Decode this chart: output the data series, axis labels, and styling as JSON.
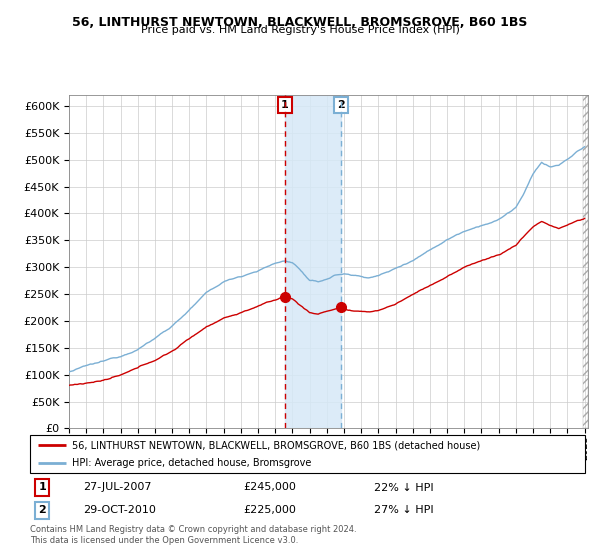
{
  "title": "56, LINTHURST NEWTOWN, BLACKWELL, BROMSGROVE, B60 1BS",
  "subtitle": "Price paid vs. HM Land Registry's House Price Index (HPI)",
  "legend_line1": "56, LINTHURST NEWTOWN, BLACKWELL, BROMSGROVE, B60 1BS (detached house)",
  "legend_line2": "HPI: Average price, detached house, Bromsgrove",
  "transaction1_date": "27-JUL-2007",
  "transaction1_price": 245000,
  "transaction1_pct": "22% ↓ HPI",
  "transaction2_date": "29-OCT-2010",
  "transaction2_price": 225000,
  "transaction2_pct": "27% ↓ HPI",
  "footer": "Contains HM Land Registry data © Crown copyright and database right 2024.\nThis data is licensed under the Open Government Licence v3.0.",
  "hpi_color": "#7bafd4",
  "price_color": "#cc0000",
  "marker_color": "#cc0000",
  "vline1_color": "#cc0000",
  "vline2_color": "#7bafd4",
  "shade_color": "#d6e8f7",
  "ylim": [
    0,
    620000
  ],
  "yticks": [
    0,
    50000,
    100000,
    150000,
    200000,
    250000,
    300000,
    350000,
    400000,
    450000,
    500000,
    550000,
    600000
  ],
  "start_year": 1995,
  "end_year": 2025,
  "transaction1_year": 2007.57,
  "transaction2_year": 2010.83
}
